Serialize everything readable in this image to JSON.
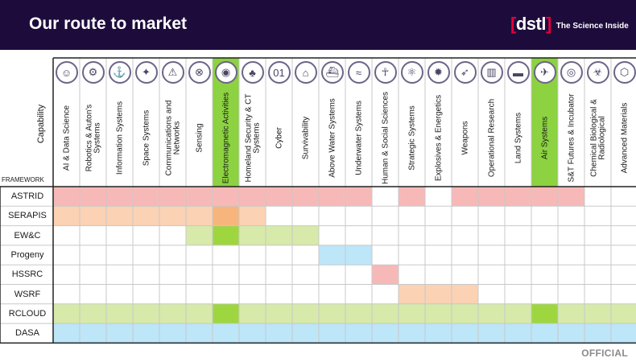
{
  "header": {
    "title": "Our route to market",
    "logo_mark": "dstl",
    "logo_tagline": "The Science Inside"
  },
  "footer": {
    "label": "OFFICIAL"
  },
  "axis": {
    "capability_label": "Capability",
    "framework_label": "FRAMEWORK"
  },
  "colors": {
    "header_bg": "#1d0c3b",
    "green_highlight": "#8cd241",
    "grid_line": "#c8c8c8"
  },
  "columns": [
    {
      "label": "AI & Data Science",
      "icon": "brain-icon",
      "glyph": "☺"
    },
    {
      "label": "Robotics & Auton's Systems",
      "icon": "robot-icon",
      "glyph": "⚙"
    },
    {
      "label": "Information Systems",
      "icon": "network-icon",
      "glyph": "⚓"
    },
    {
      "label": "Space Systems",
      "icon": "satellite-icon",
      "glyph": "✦"
    },
    {
      "label": "Communications and Networks",
      "icon": "antenna-icon",
      "glyph": "⚠"
    },
    {
      "label": "Sensing",
      "icon": "eye-icon",
      "glyph": "⊗"
    },
    {
      "label": "Electromagnetic Activities",
      "icon": "wave-icon",
      "glyph": "◉"
    },
    {
      "label": "Homeland Security & CT Systems",
      "icon": "map-icon",
      "glyph": "♣"
    },
    {
      "label": "Cyber",
      "icon": "binary-icon",
      "glyph": "01"
    },
    {
      "label": "Survivability",
      "icon": "helmet-icon",
      "glyph": "⌂"
    },
    {
      "label": "Above Water Systems",
      "icon": "ship-icon",
      "glyph": "⛴"
    },
    {
      "label": "Underwater Systems",
      "icon": "submarine-icon",
      "glyph": "≈"
    },
    {
      "label": "Human & Social Sciences",
      "icon": "person-icon",
      "glyph": "☥"
    },
    {
      "label": "Strategic Systems",
      "icon": "atom-icon",
      "glyph": "⚛"
    },
    {
      "label": "Explosives & Energetics",
      "icon": "burst-icon",
      "glyph": "✹"
    },
    {
      "label": "Weapons",
      "icon": "missile-icon",
      "glyph": "➶"
    },
    {
      "label": "Operational Research",
      "icon": "bar-chart-icon",
      "glyph": "▥"
    },
    {
      "label": "Land Systems",
      "icon": "tank-icon",
      "glyph": "▬"
    },
    {
      "label": "Air Systems",
      "icon": "aircraft-icon",
      "glyph": "✈"
    },
    {
      "label": "S&T Futures & Incubator",
      "icon": "lightbulb-icon",
      "glyph": "◎"
    },
    {
      "label": "Chemical Biological & Radiological",
      "icon": "biohazard-icon",
      "glyph": "☣"
    },
    {
      "label": "Advanced Materials",
      "icon": "molecule-icon",
      "glyph": "⬡"
    }
  ],
  "highlighted_columns": [
    6,
    18
  ],
  "rows": [
    {
      "label": "ASTRID",
      "color": "#f7b9b7",
      "dark": "#f7b9b7",
      "cells": [
        1,
        1,
        1,
        1,
        1,
        1,
        1,
        1,
        1,
        1,
        1,
        1,
        0,
        1,
        0,
        1,
        1,
        1,
        1,
        1,
        0,
        0
      ]
    },
    {
      "label": "SERAPIS",
      "color": "#fbd2b4",
      "dark": "#f8b47d",
      "cells": [
        1,
        1,
        1,
        1,
        1,
        1,
        2,
        1,
        0,
        0,
        0,
        0,
        0,
        0,
        0,
        0,
        0,
        0,
        0,
        0,
        0,
        0
      ]
    },
    {
      "label": "EW&C",
      "color": "#d7eaa9",
      "dark": "#9ed640",
      "cells": [
        0,
        0,
        0,
        0,
        0,
        1,
        2,
        1,
        1,
        1,
        0,
        0,
        0,
        0,
        0,
        0,
        0,
        0,
        0,
        0,
        0,
        0
      ]
    },
    {
      "label": "Progeny",
      "color": "#bde6f8",
      "dark": "#bde6f8",
      "cells": [
        0,
        0,
        0,
        0,
        0,
        0,
        0,
        0,
        0,
        0,
        1,
        1,
        0,
        0,
        0,
        0,
        0,
        0,
        0,
        0,
        0,
        0
      ]
    },
    {
      "label": "HSSRC",
      "color": "#f7b9b7",
      "dark": "#f7b9b7",
      "cells": [
        0,
        0,
        0,
        0,
        0,
        0,
        0,
        0,
        0,
        0,
        0,
        0,
        1,
        0,
        0,
        0,
        0,
        0,
        0,
        0,
        0,
        0
      ]
    },
    {
      "label": "WSRF",
      "color": "#fbd2b4",
      "dark": "#fbd2b4",
      "cells": [
        0,
        0,
        0,
        0,
        0,
        0,
        0,
        0,
        0,
        0,
        0,
        0,
        0,
        1,
        1,
        1,
        0,
        0,
        0,
        0,
        0,
        0
      ]
    },
    {
      "label": "RCLOUD",
      "color": "#d7eaa9",
      "dark": "#9ed640",
      "cells": [
        1,
        1,
        1,
        1,
        1,
        1,
        2,
        1,
        1,
        1,
        1,
        1,
        1,
        1,
        1,
        1,
        1,
        1,
        2,
        1,
        1,
        1
      ]
    },
    {
      "label": "DASA",
      "color": "#bde6f8",
      "dark": "#bde6f8",
      "cells": [
        1,
        1,
        1,
        1,
        1,
        1,
        1,
        1,
        1,
        1,
        1,
        1,
        1,
        1,
        1,
        1,
        1,
        1,
        1,
        1,
        1,
        1
      ]
    }
  ]
}
